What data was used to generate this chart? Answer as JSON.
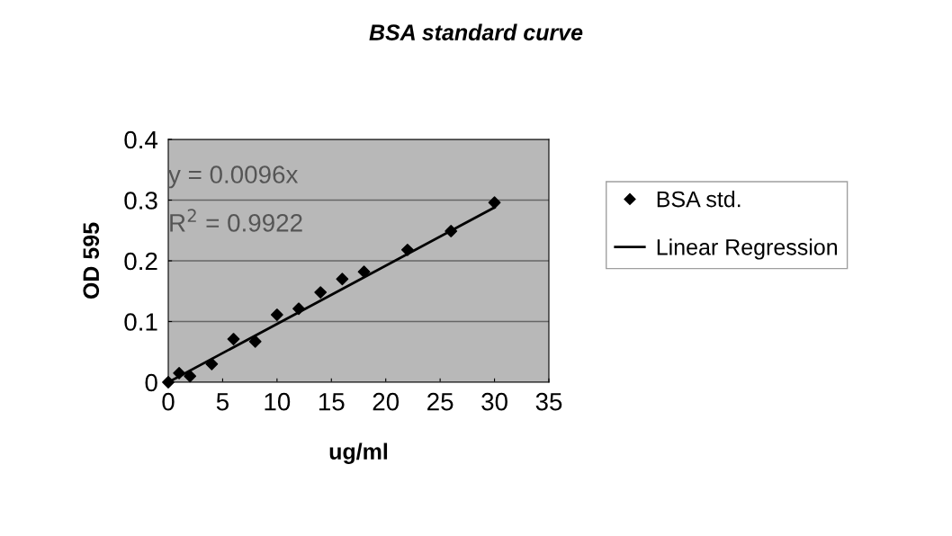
{
  "chart_data": {
    "type": "scatter",
    "title": "BSA standard curve",
    "xlabel": "ug/ml",
    "ylabel": "OD 595",
    "series": [
      {
        "name": "BSA std.",
        "color": "#000000",
        "marker": "diamond",
        "x": [
          0,
          1,
          2,
          4,
          6,
          8,
          10,
          12,
          14,
          16,
          18,
          22,
          26,
          30
        ],
        "values": [
          0,
          0.015,
          0.01,
          0.03,
          0.071,
          0.067,
          0.111,
          0.121,
          0.148,
          0.17,
          0.182,
          0.218,
          0.249,
          0.296
        ]
      },
      {
        "name": "Linear Regression",
        "type": "line",
        "color": "#000000",
        "line_style": "solid",
        "x": [
          0,
          30
        ],
        "values": [
          0,
          0.288
        ]
      }
    ],
    "annotations": [
      "y = 0.0096x",
      "R$^{2}$ = 0.9922"
    ],
    "xlim": [
      0,
      35
    ],
    "xticks": [
      0,
      5,
      10,
      15,
      20,
      25,
      30,
      35
    ],
    "ylim": [
      0,
      0.4
    ],
    "yticks": [
      0,
      0.1,
      0.2,
      0.3,
      0.4
    ],
    "grid": "y",
    "legend": "right"
  }
}
